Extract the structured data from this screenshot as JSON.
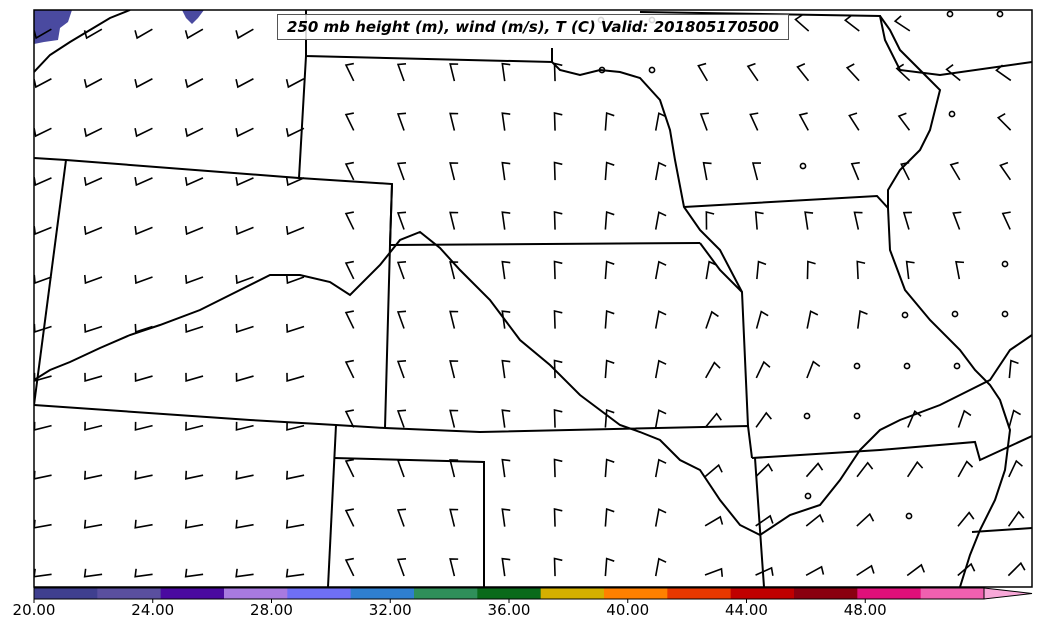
{
  "title": "250 mb height (m), wind (m/s), T (C) Valid: 201805170500",
  "colorbar": {
    "colors": [
      "#3f3f8f",
      "#5a4f9f",
      "#4a0aa0",
      "#a87ae0",
      "#6f6ff5",
      "#2f7fd0",
      "#2f8f5a",
      "#0a6a1a",
      "#d4b000",
      "#ff8000",
      "#e83800",
      "#c00000",
      "#8a0010",
      "#e0107a",
      "#f060b0"
    ],
    "extend_color": "#f8a8d8",
    "min": 20,
    "max": 52,
    "tick_values": [
      20,
      24,
      28,
      32,
      36,
      40,
      44,
      48
    ],
    "tick_labels": [
      "20.00",
      "24.00",
      "28.00",
      "32.00",
      "36.00",
      "40.00",
      "44.00",
      "48.00"
    ]
  },
  "shaded_region_color": "#4a4aa0",
  "calm_station_count": 24
}
